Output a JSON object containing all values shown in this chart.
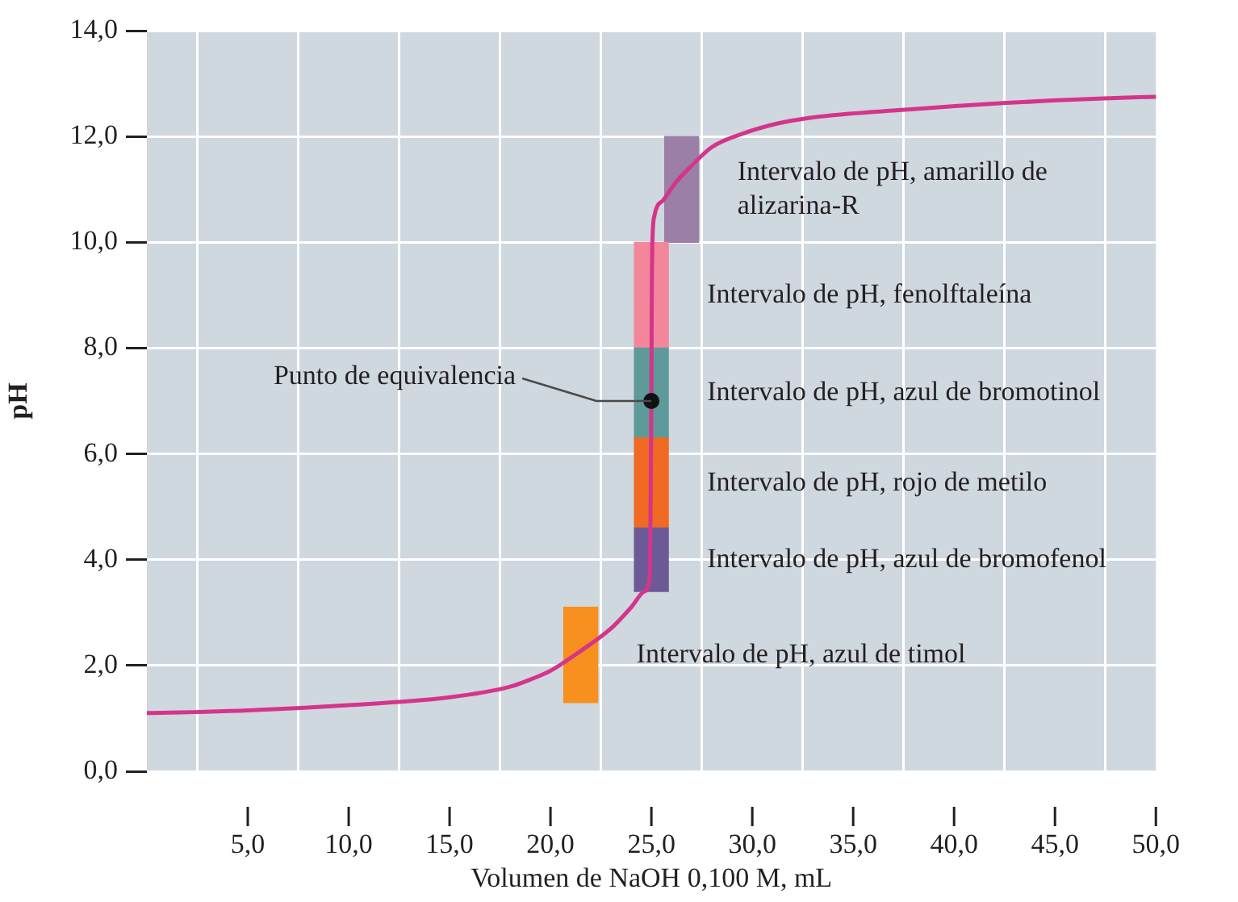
{
  "chart_data": {
    "type": "line",
    "xlabel": "Volumen de NaOH 0,100 M, mL",
    "ylabel": "pH",
    "xlim": [
      0,
      50
    ],
    "xticks": [
      {
        "value": 5,
        "label": "5,0"
      },
      {
        "value": 10,
        "label": "10,0"
      },
      {
        "value": 15,
        "label": "15,0"
      },
      {
        "value": 20,
        "label": "20,0"
      },
      {
        "value": 25,
        "label": "25,0"
      },
      {
        "value": 30,
        "label": "30,0"
      },
      {
        "value": 35,
        "label": "35,0"
      },
      {
        "value": 40,
        "label": "40,0"
      },
      {
        "value": 45,
        "label": "45,0"
      },
      {
        "value": 50,
        "label": "50,0"
      }
    ],
    "ylim": [
      0,
      14
    ],
    "yticks": [
      {
        "value": 0,
        "label": "0,0"
      },
      {
        "value": 2,
        "label": "2,0"
      },
      {
        "value": 4,
        "label": "4,0"
      },
      {
        "value": 6,
        "label": "6,0"
      },
      {
        "value": 8,
        "label": "8,0"
      },
      {
        "value": 10,
        "label": "10,0"
      },
      {
        "value": 12,
        "label": "12,0"
      },
      {
        "value": 14,
        "label": "14,0"
      }
    ],
    "grid": true,
    "series": [
      {
        "color": "#d4358a",
        "x": [
          0,
          5,
          10,
          15,
          18,
          19.1,
          20,
          21.4,
          23,
          24,
          24.65,
          24.9,
          24.95,
          25,
          25.02,
          25.05,
          25.15,
          25.6,
          26.25,
          27,
          28,
          29.5,
          31.3,
          32.8,
          34.8,
          37.4,
          39.9,
          42.4,
          44.9,
          47.4,
          50
        ],
        "values": [
          1.1,
          1.15,
          1.25,
          1.4,
          1.6,
          1.75,
          1.9,
          2.25,
          2.7,
          3.1,
          3.4,
          3.6,
          4.5,
          7,
          9,
          10,
          10.5,
          10.8,
          11.15,
          11.45,
          11.8,
          12.05,
          12.25,
          12.35,
          12.43,
          12.5,
          12.57,
          12.63,
          12.68,
          12.72,
          12.75
        ]
      },
      {
        "type": "bar",
        "name": "Intervalo de pH, azul de timol",
        "color": "#f7901e",
        "x": [
          21.5
        ],
        "base": [
          1.3
        ],
        "values": [
          1.8
        ]
      },
      {
        "type": "bar",
        "name": "Intervalo de pH, azul de bromofenol",
        "color": "#6c5a96",
        "x": [
          25
        ],
        "base": [
          3.4
        ],
        "values": [
          1.2
        ]
      },
      {
        "type": "bar",
        "name": "Intervalo de pH, rojo de metilo",
        "color": "#f06a24",
        "x": [
          25
        ],
        "base": [
          4.6
        ],
        "values": [
          1.7
        ]
      },
      {
        "type": "bar",
        "name": "Intervalo de pH, azul de bromotinol",
        "color": "#5f9a9a",
        "x": [
          25
        ],
        "base": [
          6.3
        ],
        "values": [
          1.7
        ]
      },
      {
        "type": "bar",
        "name": "Intervalo de pH, fenolftaleína",
        "color": "#f3869a",
        "x": [
          25
        ],
        "base": [
          8
        ],
        "values": [
          2
        ]
      },
      {
        "type": "bar",
        "name": "Intervalo de pH, amarillo de alizarina-R",
        "color": "#9b7fa6",
        "x": [
          26.5
        ],
        "base": [
          10
        ],
        "values": [
          2
        ]
      },
      {
        "type": "scatter",
        "color": "#111111",
        "marker": "circle",
        "x": [
          25
        ],
        "values": [
          7
        ]
      }
    ],
    "annotations": [
      {
        "text": "Punto de equivalencia",
        "x": 25,
        "y": 7
      }
    ]
  }
}
